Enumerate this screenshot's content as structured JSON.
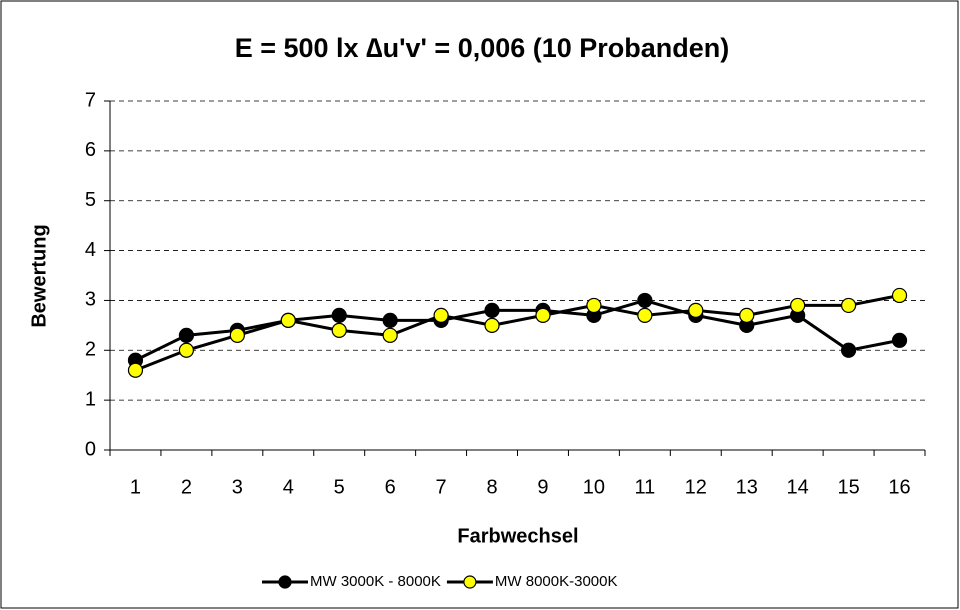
{
  "chart_data": {
    "type": "line",
    "title": "E = 500 lx ∆u'v' = 0,006 (10 Probanden)",
    "x_label": "Farbwechsel",
    "y_label": "Bewertung",
    "categories": [
      "1",
      "2",
      "3",
      "4",
      "5",
      "6",
      "7",
      "8",
      "9",
      "10",
      "11",
      "12",
      "13",
      "14",
      "15",
      "16"
    ],
    "series": [
      {
        "name": "MW 3000K - 8000K",
        "color": "#000000",
        "values": [
          1.8,
          2.3,
          2.4,
          2.6,
          2.7,
          2.6,
          2.6,
          2.8,
          2.8,
          2.7,
          3.0,
          2.7,
          2.5,
          2.7,
          2.0,
          2.2
        ]
      },
      {
        "name": "MW 8000K-3000K",
        "color": "#ffff00",
        "values": [
          1.6,
          2.0,
          2.3,
          2.6,
          2.4,
          2.3,
          2.7,
          2.5,
          2.7,
          2.9,
          2.7,
          2.8,
          2.7,
          2.9,
          2.9,
          3.1
        ]
      }
    ],
    "ylim": [
      0,
      7
    ],
    "yticks": [
      0,
      1,
      2,
      3,
      4,
      5,
      6,
      7
    ],
    "grid": true,
    "legend": "bottom"
  }
}
